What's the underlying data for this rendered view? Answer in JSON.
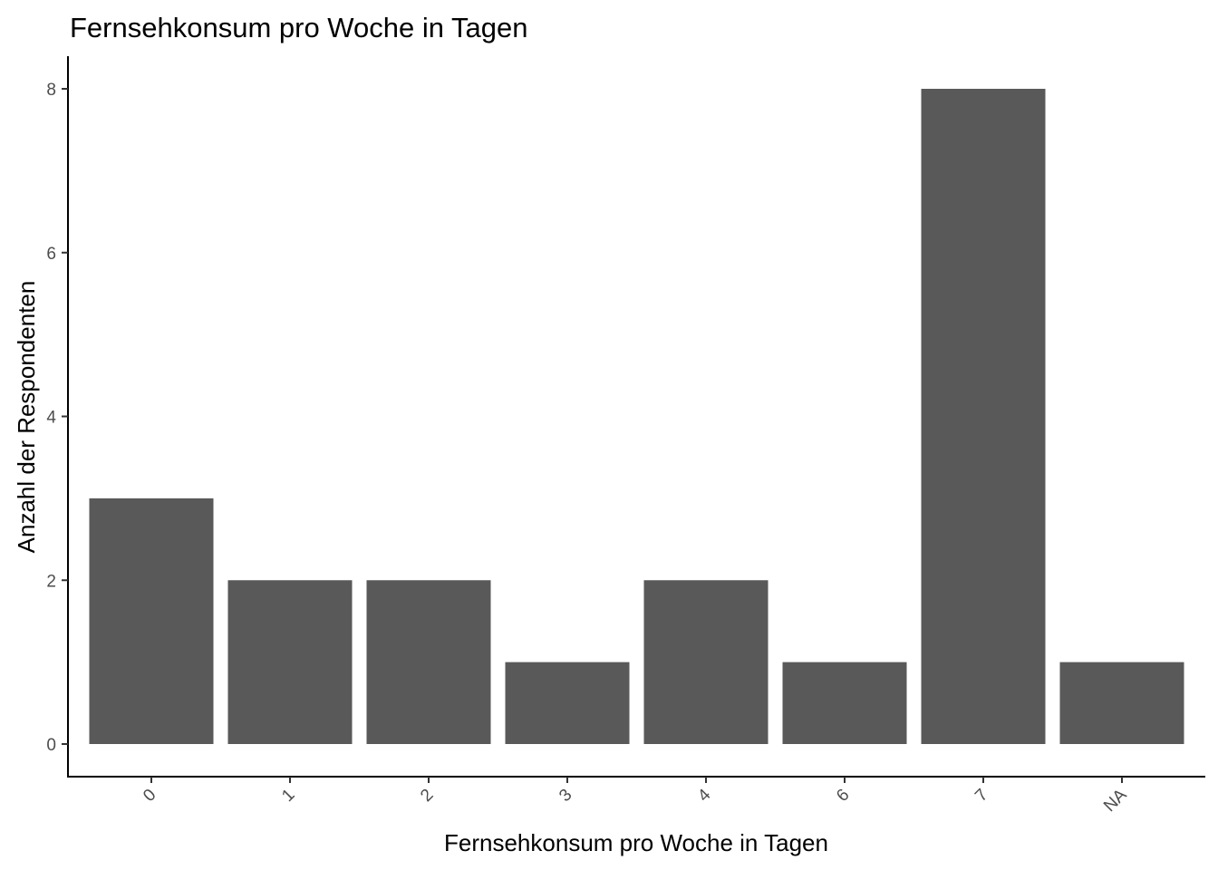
{
  "chart_data": {
    "type": "bar",
    "title": "Fernsehkonsum pro Woche in Tagen",
    "xlabel": "Fernsehkonsum pro Woche in Tagen",
    "ylabel": "Anzahl der Respondenten",
    "categories": [
      "0",
      "1",
      "2",
      "3",
      "4",
      "6",
      "7",
      "NA"
    ],
    "values": [
      3,
      2,
      2,
      1,
      2,
      1,
      8,
      1
    ],
    "ylim": [
      0,
      8.4
    ],
    "yticks": [
      0,
      2,
      4,
      6,
      8
    ],
    "grid": false,
    "bar_color": "#595959"
  }
}
